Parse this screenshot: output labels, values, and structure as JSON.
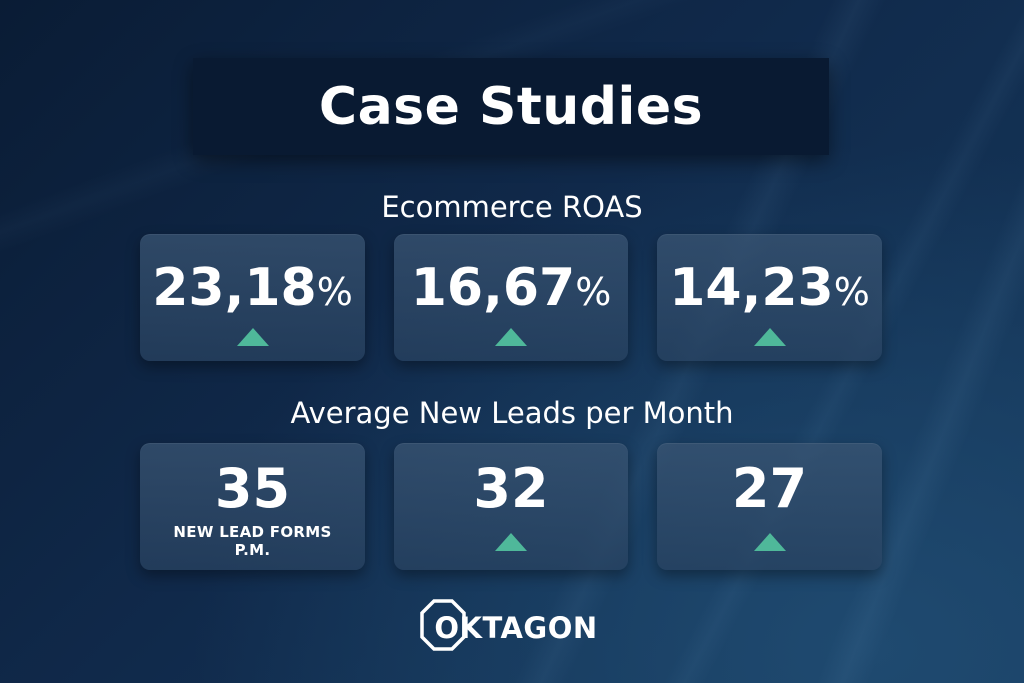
{
  "title": "Case Studies",
  "ecommerce": {
    "heading": "Ecommerce ROAS",
    "cards": [
      {
        "value": "23,18",
        "unit": "%",
        "trend": "up"
      },
      {
        "value": "16,67",
        "unit": "%",
        "trend": "up"
      },
      {
        "value": "14,23",
        "unit": "%",
        "trend": "up"
      }
    ]
  },
  "leads": {
    "heading": "Average New Leads per Month",
    "cards": [
      {
        "value": "35",
        "caption_line1": "NEW LEAD FORMS",
        "caption_line2": "P.M."
      },
      {
        "value": "32",
        "trend": "up"
      },
      {
        "value": "27",
        "trend": "up"
      }
    ]
  },
  "logo": {
    "text": "OKTAGON"
  },
  "colors": {
    "background": "#10294a",
    "title_box": "#091a32",
    "trend_up": "#4fb89a",
    "text": "#ffffff"
  }
}
